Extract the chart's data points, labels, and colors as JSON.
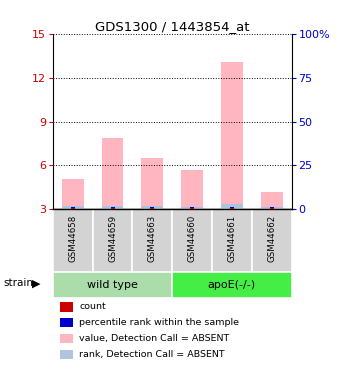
{
  "title": "GDS1300 / 1443854_at",
  "samples": [
    "GSM44658",
    "GSM44659",
    "GSM44663",
    "GSM44660",
    "GSM44661",
    "GSM44662"
  ],
  "group_labels": [
    "wild type",
    "apoE(-/-)"
  ],
  "value_bars": [
    5.1,
    7.9,
    6.5,
    5.7,
    13.1,
    4.2
  ],
  "rank_bars": [
    0.22,
    0.22,
    0.22,
    0.18,
    0.38,
    0.15
  ],
  "ylim_left": [
    3,
    15
  ],
  "ylim_right": [
    0,
    100
  ],
  "yticks_left": [
    3,
    6,
    9,
    12,
    15
  ],
  "yticks_right": [
    0,
    25,
    50,
    75,
    100
  ],
  "ytick_labels_right": [
    "0",
    "25",
    "50",
    "75",
    "100%"
  ],
  "color_value_absent": "#ffb6c1",
  "color_rank_absent": "#b0c4de",
  "color_count": "#cc0000",
  "color_percentile": "#0000cc",
  "bar_bottom": 3.0,
  "sample_bg_color": "#d3d3d3",
  "wild_type_color": "#aaddaa",
  "apoe_color": "#44ee44",
  "legend_items": [
    "count",
    "percentile rank within the sample",
    "value, Detection Call = ABSENT",
    "rank, Detection Call = ABSENT"
  ],
  "legend_colors": [
    "#cc0000",
    "#0000cc",
    "#ffb6c1",
    "#b0c4de"
  ]
}
